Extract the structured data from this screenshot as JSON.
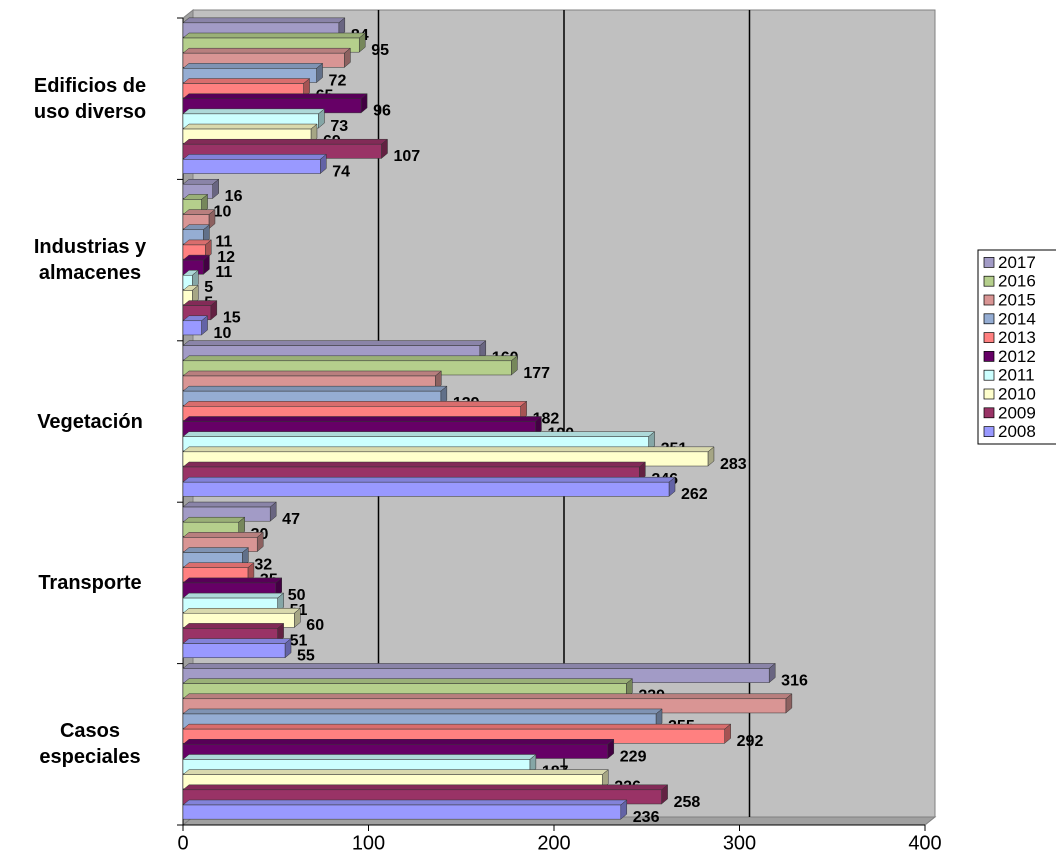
{
  "chart_data": {
    "type": "bar3d_horizontal",
    "categories": [
      "Edificios de uso diverso",
      "Industrias y almacenes",
      "Vegetación",
      "Transporte",
      "Casos especiales"
    ],
    "series": [
      {
        "name": "2017",
        "color": "#a29bc6",
        "values": [
          84,
          16,
          160,
          47,
          316
        ]
      },
      {
        "name": "2016",
        "color": "#b5cf8c",
        "values": [
          95,
          10,
          177,
          30,
          239
        ]
      },
      {
        "name": "2015",
        "color": "#d99594",
        "values": [
          87,
          14,
          136,
          40,
          325
        ],
        "labels": false
      },
      {
        "name": "2014",
        "color": "#95add3",
        "values": [
          72,
          11,
          139,
          32,
          255
        ]
      },
      {
        "name": "2013",
        "color": "#ff8080",
        "values": [
          65,
          12,
          182,
          35,
          292
        ]
      },
      {
        "name": "2012",
        "color": "#660066",
        "values": [
          96,
          11,
          190,
          50,
          229
        ]
      },
      {
        "name": "2011",
        "color": "#ccffff",
        "values": [
          73,
          5,
          251,
          51,
          187
        ]
      },
      {
        "name": "2010",
        "color": "#ffffcc",
        "values": [
          69,
          5,
          283,
          60,
          226
        ]
      },
      {
        "name": "2009",
        "color": "#993366",
        "values": [
          107,
          15,
          246,
          51,
          258
        ]
      },
      {
        "name": "2008",
        "color": "#9999ff",
        "values": [
          74,
          10,
          262,
          55,
          236
        ]
      }
    ],
    "xlim": [
      0,
      400
    ],
    "xticks": [
      0,
      100,
      200,
      300,
      400
    ],
    "grid": true,
    "legend": "right"
  }
}
